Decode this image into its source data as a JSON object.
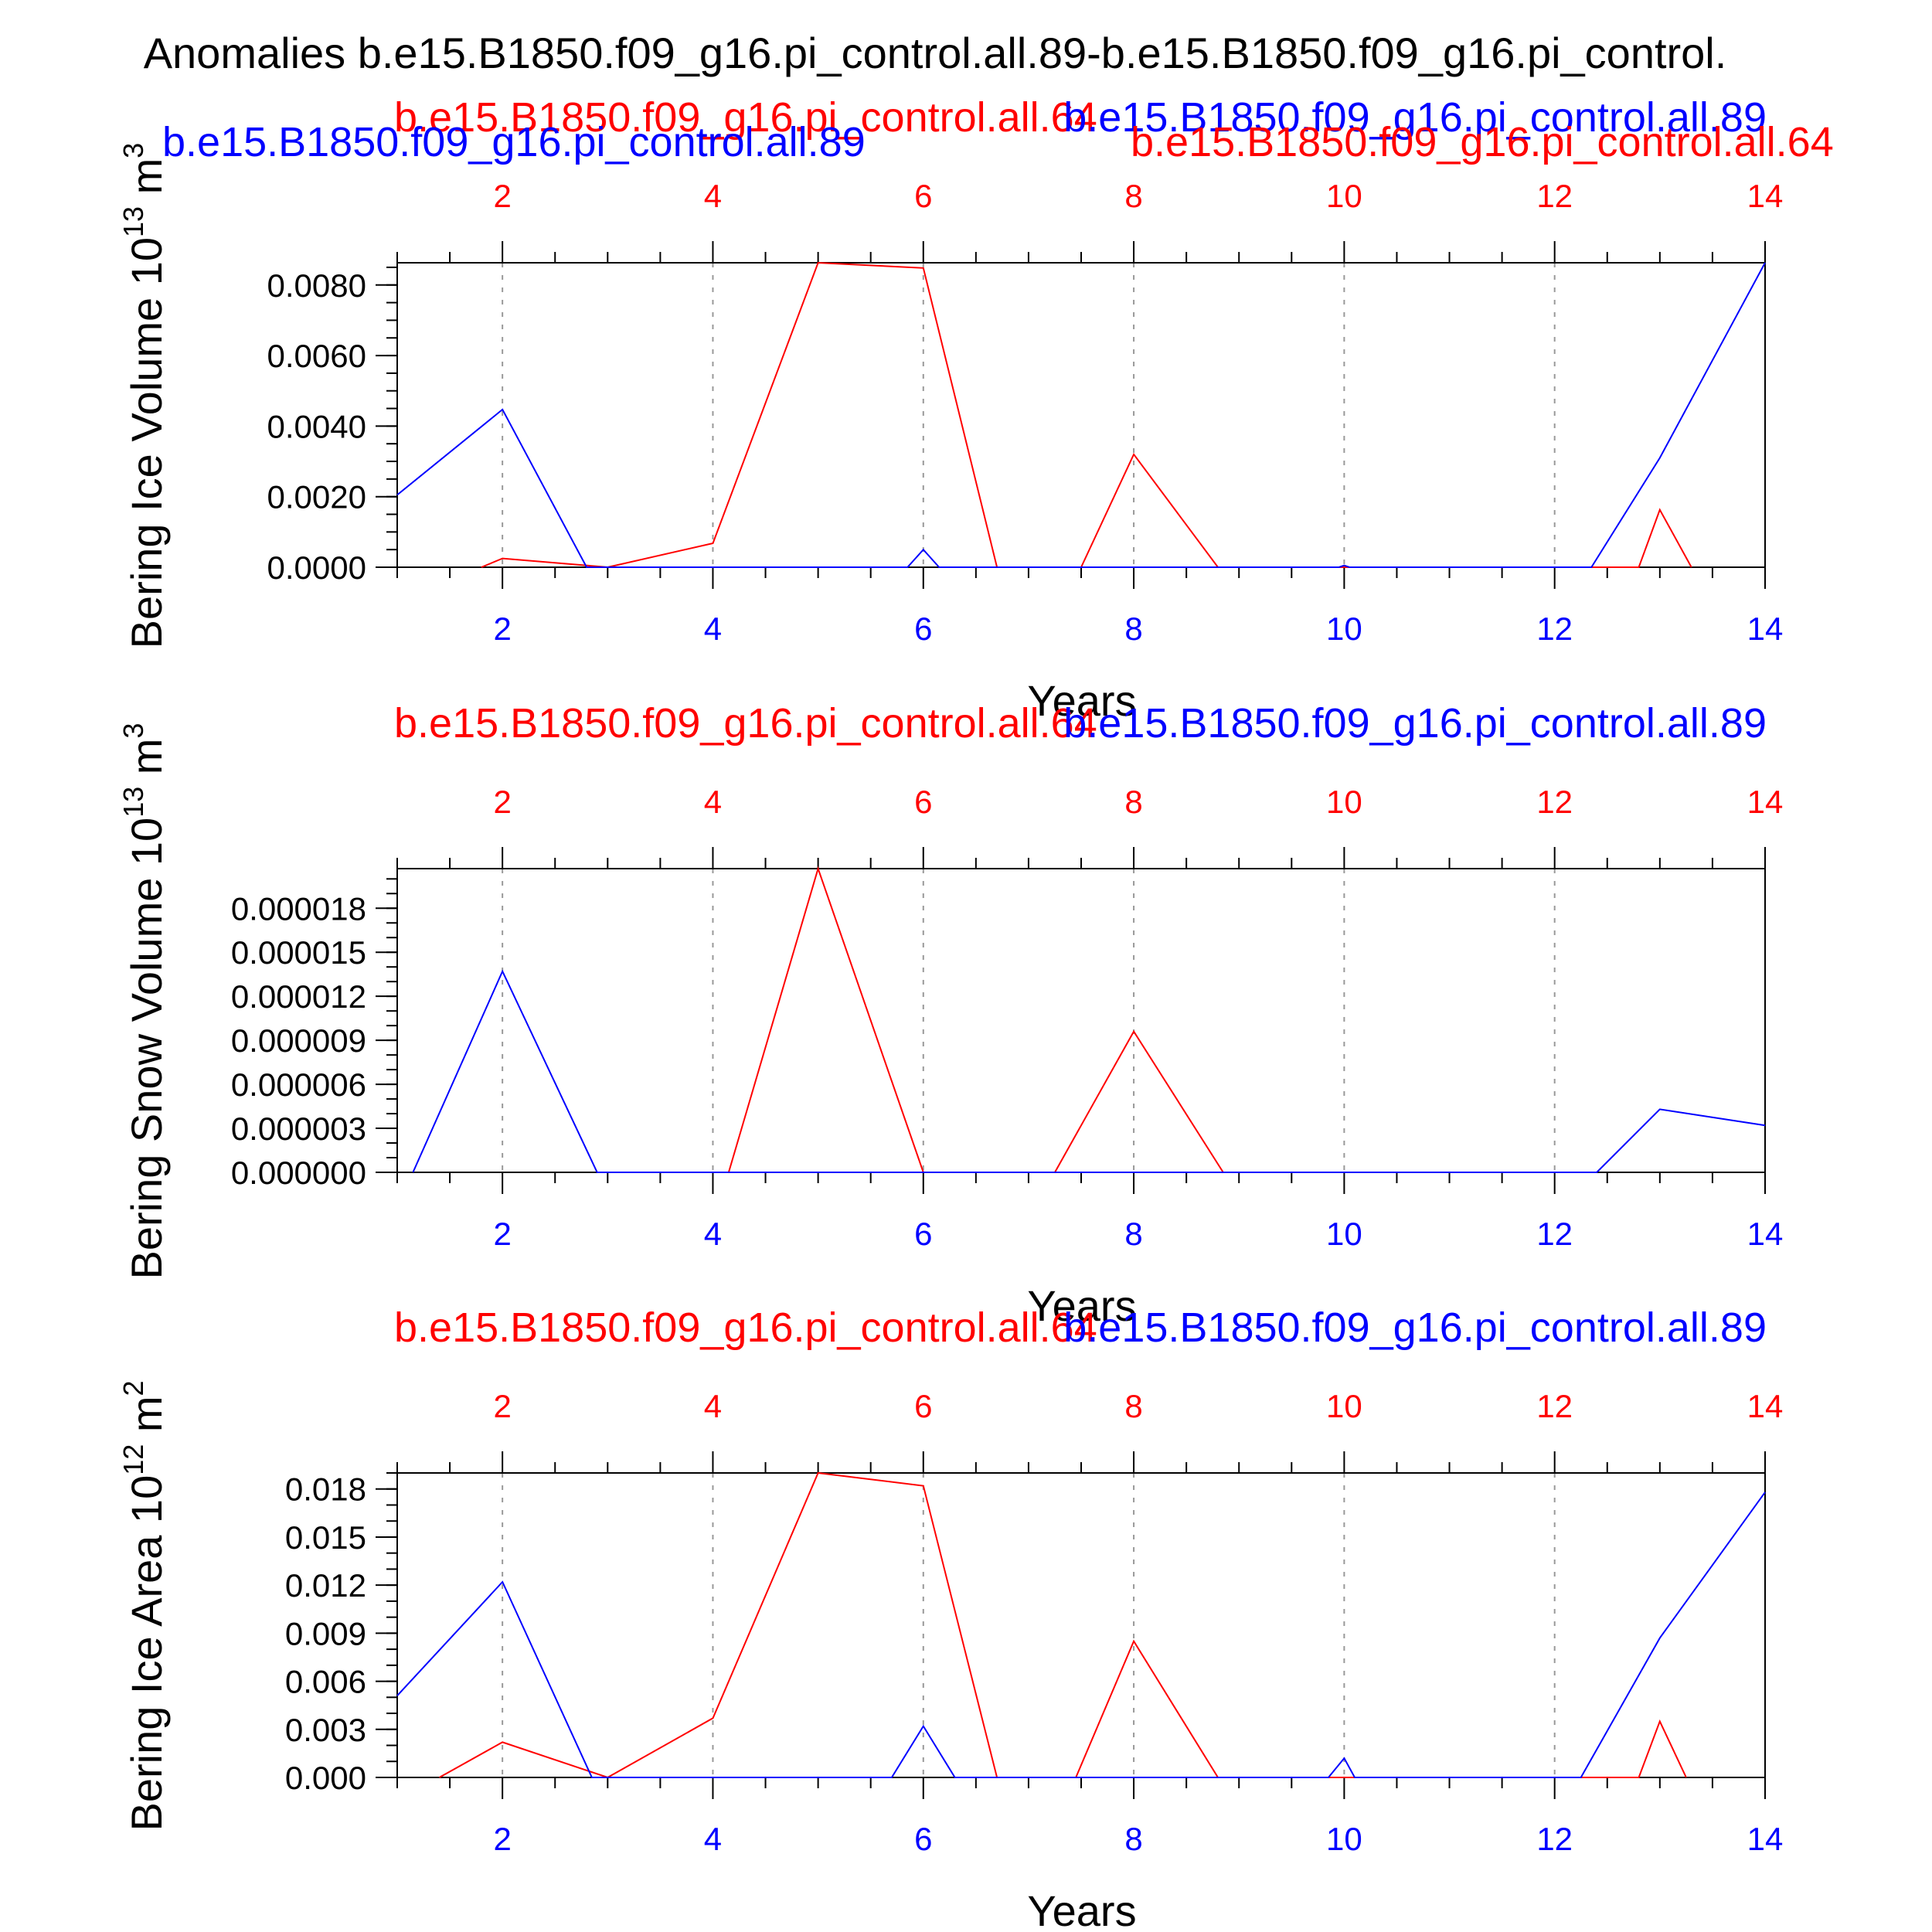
{
  "main_title": "Anomalies b.e15.B1850.f09_g16.pi_control.all.89-b.e15.B1850.f09_g16.pi_control.",
  "colors": {
    "red": "#ff0000",
    "blue": "#0000ff",
    "axis": "#000000",
    "grid": "#999999"
  },
  "chart_data": [
    {
      "type": "line",
      "ylabel_text": "Bering Ice Volume 10",
      "ylabel_exp": "13",
      "ylabel_unit": " m",
      "ylabel_unit_exp": "3",
      "xlabel": "Years",
      "yticks": [
        0.0,
        0.002,
        0.004,
        0.006,
        0.008
      ],
      "ytick_labels": [
        "0.0000",
        "0.0020",
        "0.0040",
        "0.0060",
        "0.0080"
      ],
      "yminor_step": 0.0005,
      "ylim": [
        0.0,
        0.00863
      ],
      "xlim": [
        1,
        14
      ],
      "xticks": [
        2,
        4,
        6,
        8,
        10,
        12,
        14
      ],
      "xtick_labels": [
        "2",
        "4",
        "6",
        "8",
        "10",
        "12",
        "14"
      ],
      "top_label_red": "b.e15.B1850.f09_g16.pi_control.all.64",
      "top_label_blue": "b.e15.B1850.f09_g16.pi_control.all.89",
      "extra_label_blue": "b.e15.B1850.f09_g16.pi_control.all.89",
      "extra_label_red": "b.e15.B1850.f09_g16.pi_control.all.64",
      "grid": "vertical dashed",
      "series": [
        {
          "color": "red",
          "x": [
            1.8,
            2,
            3,
            4,
            5,
            6,
            6.7,
            7.5,
            8,
            8.8,
            12.8,
            13,
            13.3
          ],
          "y": [
            0,
            0.00025,
            0,
            0.00068,
            0.00863,
            0.00848,
            0,
            0,
            0.0032,
            0,
            0,
            0.00163,
            0
          ]
        },
        {
          "color": "blue",
          "x": [
            1,
            2,
            2.8,
            5.85,
            6,
            6.15,
            9.95,
            10,
            10.05,
            12.35,
            13,
            14
          ],
          "y": [
            0.00205,
            0.00447,
            0,
            0,
            0.0005,
            0,
            0,
            5e-05,
            0,
            0,
            0.0031,
            0.00863
          ]
        }
      ]
    },
    {
      "type": "line",
      "ylabel_text": "Bering Snow Volume 10",
      "ylabel_exp": "13",
      "ylabel_unit": " m",
      "ylabel_unit_exp": "3",
      "xlabel": "Years",
      "yticks": [
        0.0,
        3e-06,
        6e-06,
        9e-06,
        1.2e-05,
        1.5e-05,
        1.8e-05
      ],
      "ytick_labels": [
        "0.000000",
        "0.000003",
        "0.000006",
        "0.000009",
        "0.000012",
        "0.000015",
        "0.000018"
      ],
      "yminor_step": 1e-06,
      "ylim": [
        0.0,
        2.07e-05
      ],
      "xlim": [
        1,
        14
      ],
      "xticks": [
        2,
        4,
        6,
        8,
        10,
        12,
        14
      ],
      "xtick_labels": [
        "2",
        "4",
        "6",
        "8",
        "10",
        "12",
        "14"
      ],
      "top_label_red": "b.e15.B1850.f09_g16.pi_control.all.64",
      "top_label_blue": "b.e15.B1850.f09_g16.pi_control.all.89",
      "grid": "vertical dashed",
      "series": [
        {
          "color": "red",
          "x": [
            4.15,
            5,
            6,
            7.25,
            8,
            8.85
          ],
          "y": [
            0,
            2.07e-05,
            0,
            0,
            9.6e-06,
            0
          ]
        },
        {
          "color": "blue",
          "x": [
            1.15,
            2,
            2.9,
            12.4,
            13,
            14
          ],
          "y": [
            0,
            1.37e-05,
            0,
            0,
            4.3e-06,
            3.2e-06
          ]
        }
      ]
    },
    {
      "type": "line",
      "ylabel_text": "Bering Ice Area 10",
      "ylabel_exp": "12",
      "ylabel_unit": " m",
      "ylabel_unit_exp": "2",
      "xlabel": "Years",
      "yticks": [
        0.0,
        0.003,
        0.006,
        0.009,
        0.012,
        0.015,
        0.018
      ],
      "ytick_labels": [
        "0.000",
        "0.003",
        "0.006",
        "0.009",
        "0.012",
        "0.015",
        "0.018"
      ],
      "yminor_step": 0.001,
      "ylim": [
        0.0,
        0.019
      ],
      "xlim": [
        1,
        14
      ],
      "xticks": [
        2,
        4,
        6,
        8,
        10,
        12,
        14
      ],
      "xtick_labels": [
        "2",
        "4",
        "6",
        "8",
        "10",
        "12",
        "14"
      ],
      "top_label_red": "b.e15.B1850.f09_g16.pi_control.all.64",
      "top_label_blue": "b.e15.B1850.f09_g16.pi_control.all.89",
      "grid": "vertical dashed",
      "series": [
        {
          "color": "red",
          "x": [
            1.4,
            2,
            3,
            4,
            5,
            6,
            6.7,
            7.45,
            8,
            8.8,
            12.8,
            13,
            13.25
          ],
          "y": [
            0,
            0.0022,
            0,
            0.0037,
            0.019,
            0.0182,
            0,
            0,
            0.0085,
            0,
            0,
            0.0035,
            0
          ]
        },
        {
          "color": "blue",
          "x": [
            1,
            2,
            2.85,
            5.7,
            6,
            6.3,
            9.85,
            10,
            10.1,
            12.25,
            13,
            14
          ],
          "y": [
            0.0051,
            0.0122,
            0,
            0,
            0.0032,
            0,
            0,
            0.0012,
            0,
            0,
            0.0087,
            0.0178
          ]
        }
      ]
    }
  ]
}
